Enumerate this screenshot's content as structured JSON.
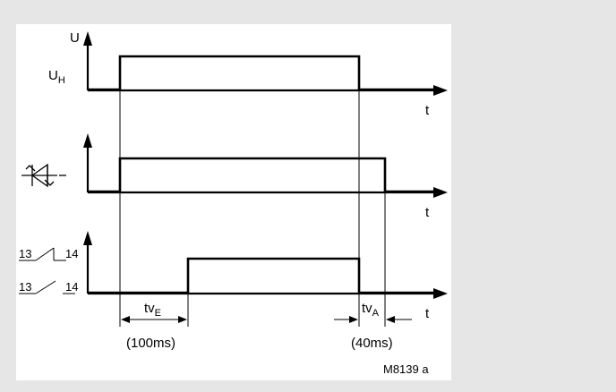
{
  "diagram": {
    "label_u": "U",
    "label_uh_main": "U",
    "label_uh_sub": "H",
    "label_t": "t",
    "contact_no_left": "13",
    "contact_no_right": "14",
    "contact_nc_left": "13",
    "contact_nc_right": "14",
    "tve_main": "tv",
    "tve_sub": "E",
    "tve_value": "(100ms)",
    "tva_main": "tv",
    "tva_sub": "A",
    "tva_value": "(40ms)",
    "drawing_id": "M8139 a"
  }
}
